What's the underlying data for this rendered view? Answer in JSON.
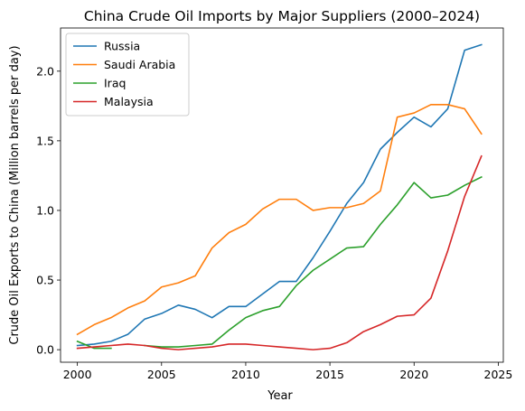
{
  "chart_data": {
    "type": "line",
    "title": "China Crude Oil Imports by Major Suppliers (2000–2024)",
    "xlabel": "Year",
    "ylabel": "Crude Oil Exports to China (Million barrels per day)",
    "xlim": [
      1999,
      2025.3
    ],
    "ylim": [
      -0.09,
      2.31
    ],
    "xticks": [
      2000,
      2005,
      2010,
      2015,
      2020,
      2025
    ],
    "yticks": [
      0.0,
      0.5,
      1.0,
      1.5,
      2.0
    ],
    "ytick_labels": [
      "0.0",
      "0.5",
      "1.0",
      "1.5",
      "2.0"
    ],
    "grid": false,
    "legend_position": "top-left",
    "series": [
      {
        "name": "Russia",
        "color": "#1f77b4",
        "x": [
          2000,
          2001,
          2002,
          2003,
          2004,
          2005,
          2006,
          2007,
          2008,
          2009,
          2010,
          2011,
          2012,
          2013,
          2014,
          2015,
          2016,
          2017,
          2018,
          2019,
          2020,
          2021,
          2022,
          2023,
          2024
        ],
        "y": [
          0.03,
          0.04,
          0.06,
          0.11,
          0.22,
          0.26,
          0.32,
          0.29,
          0.23,
          0.31,
          0.31,
          0.4,
          0.49,
          0.49,
          0.66,
          0.85,
          1.05,
          1.2,
          1.44,
          1.56,
          1.67,
          1.6,
          1.73,
          2.15,
          2.19
        ]
      },
      {
        "name": "Saudi Arabia",
        "color": "#ff7f0e",
        "x": [
          2000,
          2001,
          2002,
          2003,
          2004,
          2005,
          2006,
          2007,
          2008,
          2009,
          2010,
          2011,
          2012,
          2013,
          2014,
          2015,
          2016,
          2017,
          2018,
          2019,
          2020,
          2021,
          2022,
          2023,
          2024
        ],
        "y": [
          0.11,
          0.18,
          0.23,
          0.3,
          0.35,
          0.45,
          0.48,
          0.53,
          0.73,
          0.84,
          0.9,
          1.01,
          1.08,
          1.08,
          1.0,
          1.02,
          1.02,
          1.05,
          1.14,
          1.67,
          1.7,
          1.76,
          1.76,
          1.73,
          1.55
        ]
      },
      {
        "name": "Iraq",
        "color": "#2ca02c",
        "segments": [
          {
            "x": [
              2000,
              2001,
              2002
            ],
            "y": [
              0.06,
              0.01,
              0.01
            ]
          },
          {
            "x": [
              2004,
              2005,
              2006,
              2007,
              2008,
              2009,
              2010,
              2011,
              2012,
              2013,
              2014,
              2015,
              2016,
              2017,
              2018,
              2019,
              2020,
              2021,
              2022,
              2023,
              2024
            ],
            "y": [
              0.03,
              0.02,
              0.02,
              0.03,
              0.04,
              0.14,
              0.23,
              0.28,
              0.31,
              0.46,
              0.57,
              0.65,
              0.73,
              0.74,
              0.9,
              1.04,
              1.2,
              1.09,
              1.11,
              1.18,
              1.24
            ]
          }
        ]
      },
      {
        "name": "Malaysia",
        "color": "#d62728",
        "x": [
          2000,
          2001,
          2002,
          2003,
          2004,
          2005,
          2006,
          2007,
          2008,
          2009,
          2010,
          2011,
          2012,
          2013,
          2014,
          2015,
          2016,
          2017,
          2018,
          2019,
          2020,
          2021,
          2022,
          2023,
          2024
        ],
        "y": [
          0.01,
          0.02,
          0.03,
          0.04,
          0.03,
          0.01,
          0.0,
          0.01,
          0.02,
          0.04,
          0.04,
          0.03,
          0.02,
          0.01,
          0.0,
          0.01,
          0.05,
          0.13,
          0.18,
          0.24,
          0.25,
          0.37,
          0.71,
          1.1,
          1.39
        ]
      }
    ]
  }
}
